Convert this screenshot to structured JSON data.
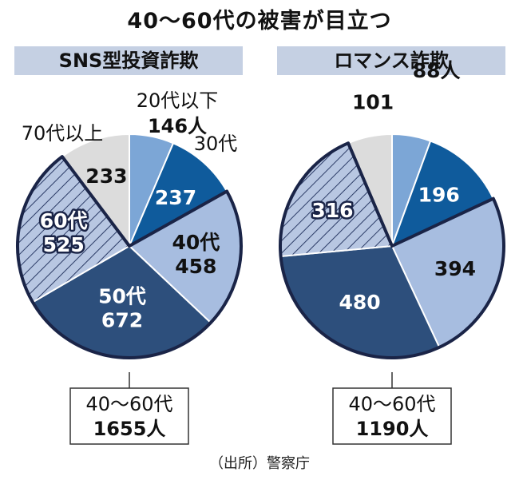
{
  "title": "40～60代の被害が目立つ",
  "source": "（出所）警察庁",
  "colors": {
    "s20": "#7ca6d6",
    "s30": "#0f5b9c",
    "s40": "#a7bde0",
    "s50": "#2d4f7c",
    "s60": "#b8c7e2",
    "s70": "#dcdcdc",
    "outline": "#1a2447",
    "banner": "#c5d0e3"
  },
  "chart_data": [
    {
      "type": "pie",
      "title": "SNS型投資詐欺",
      "slices": [
        {
          "name": "20代以下",
          "value": 146,
          "label_lines": [
            "20代以下",
            "146人"
          ],
          "color_key": "s20"
        },
        {
          "name": "30代",
          "value": 237,
          "label_lines": [
            "237"
          ],
          "outer_label": "30代",
          "color_key": "s30"
        },
        {
          "name": "40代",
          "value": 458,
          "label_lines": [
            "40代",
            "458"
          ],
          "color_key": "s40"
        },
        {
          "name": "50代",
          "value": 672,
          "label_lines": [
            "50代",
            "672"
          ],
          "color_key": "s50"
        },
        {
          "name": "60代",
          "value": 525,
          "label_lines": [
            "60代",
            "525"
          ],
          "color_key": "s60",
          "hatched": true
        },
        {
          "name": "70代以上",
          "value": 233,
          "label_lines": [
            "233"
          ],
          "outer_label": "70代以上",
          "color_key": "s70"
        }
      ],
      "callout": {
        "lines": [
          "40～60代",
          "1655人"
        ]
      }
    },
    {
      "type": "pie",
      "title": "ロマンス詐欺",
      "slices": [
        {
          "name": "20代以下",
          "value": 88,
          "label_lines": [
            "88人"
          ],
          "color_key": "s20"
        },
        {
          "name": "30代",
          "value": 196,
          "label_lines": [
            "196"
          ],
          "color_key": "s30"
        },
        {
          "name": "40代",
          "value": 394,
          "label_lines": [
            "394"
          ],
          "color_key": "s40"
        },
        {
          "name": "50代",
          "value": 480,
          "label_lines": [
            "480"
          ],
          "color_key": "s50"
        },
        {
          "name": "60代",
          "value": 316,
          "label_lines": [
            "316"
          ],
          "color_key": "s60",
          "hatched": true
        },
        {
          "name": "70代以上",
          "value": 101,
          "label_lines": [
            "101"
          ],
          "color_key": "s70"
        }
      ],
      "callout": {
        "lines": [
          "40～60代",
          "1190人"
        ]
      }
    }
  ]
}
